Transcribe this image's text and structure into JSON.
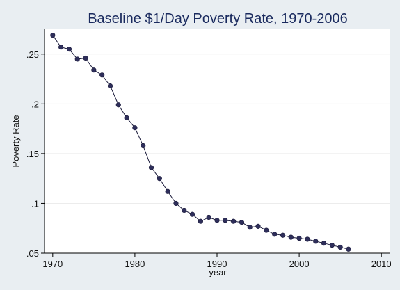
{
  "chart_data": {
    "type": "line",
    "title": "Baseline $1/Day Poverty Rate, 1970-2006",
    "xlabel": "year",
    "ylabel": "Poverty Rate",
    "xlim": [
      1969,
      2011
    ],
    "ylim": [
      0.05,
      0.275
    ],
    "xticks": [
      1970,
      1980,
      1990,
      2000,
      2010
    ],
    "xtick_labels": [
      "1970",
      "1980",
      "1990",
      "2000",
      "2010"
    ],
    "yticks": [
      0.05,
      0.1,
      0.15,
      0.2,
      0.25
    ],
    "ytick_labels": [
      ".05",
      ".1",
      ".15",
      ".2",
      ".25"
    ],
    "grid": true,
    "markers": true,
    "series": [
      {
        "x": [
          1970,
          1971,
          1972,
          1973,
          1974,
          1975,
          1976,
          1977,
          1978,
          1979,
          1980,
          1981,
          1982,
          1983,
          1984,
          1985,
          1986,
          1987,
          1988,
          1989,
          1990,
          1991,
          1992,
          1993,
          1994,
          1995,
          1996,
          1997,
          1998,
          1999,
          2000,
          2001,
          2002,
          2003,
          2004,
          2005,
          2006
        ],
        "values": [
          0.269,
          0.257,
          0.255,
          0.245,
          0.246,
          0.234,
          0.229,
          0.218,
          0.199,
          0.186,
          0.176,
          0.158,
          0.136,
          0.125,
          0.112,
          0.1,
          0.093,
          0.089,
          0.082,
          0.086,
          0.083,
          0.083,
          0.082,
          0.081,
          0.076,
          0.077,
          0.073,
          0.069,
          0.068,
          0.066,
          0.065,
          0.064,
          0.062,
          0.06,
          0.058,
          0.056,
          0.054
        ]
      }
    ],
    "colors": {
      "background": "#e9eef2",
      "plot_background": "#ffffff",
      "line": "#1a1a3a",
      "marker": "#2e2e5a",
      "grid": "#ececec",
      "title": "#1a2a5e"
    }
  }
}
